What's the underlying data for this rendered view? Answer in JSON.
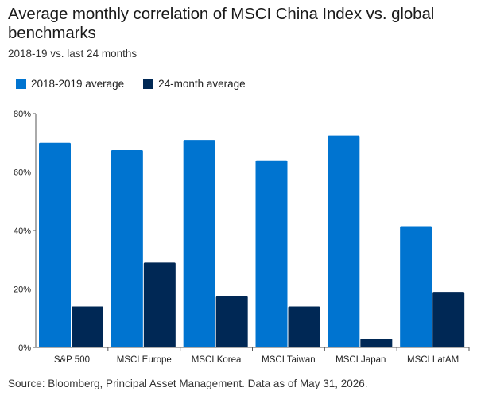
{
  "title": "Average monthly correlation of MSCI China Index vs. global benchmarks",
  "subtitle": "2018-19 vs. last 24 months",
  "source": "Source: Bloomberg, Principal Asset Management. Data as of May 31, 2026.",
  "colors": {
    "series_2018_2019": "#0074d0",
    "series_24_month": "#002855",
    "axis": "#555555"
  },
  "legend": {
    "position": "top-left",
    "items": [
      {
        "label": "2018-2019 average",
        "color": "#0074d0"
      },
      {
        "label": "24-month average",
        "color": "#002855"
      }
    ]
  },
  "chart_data": {
    "type": "bar",
    "title": "Average monthly correlation of MSCI China Index vs. global benchmarks",
    "subtitle": "2018-19 vs. last 24 months",
    "xlabel": "",
    "ylabel": "",
    "categories": [
      "S&P 500",
      "MSCI Europe",
      "MSCI Korea",
      "MSCI Taiwan",
      "MSCI Japan",
      "MSCI LatAM"
    ],
    "series": [
      {
        "name": "2018-2019 average",
        "color": "#0074d0",
        "values": [
          70,
          67.5,
          71,
          64,
          72.5,
          41.5
        ]
      },
      {
        "name": "24-month average",
        "color": "#002855",
        "values": [
          14,
          29,
          17.5,
          14,
          3,
          19
        ]
      }
    ],
    "ylim": [
      0,
      80
    ],
    "yticks": [
      0,
      20,
      40,
      60,
      80
    ],
    "ytick_labels": [
      "0%",
      "20%",
      "40%",
      "60%",
      "80%"
    ],
    "grid": false,
    "legend_position": "top-left"
  }
}
